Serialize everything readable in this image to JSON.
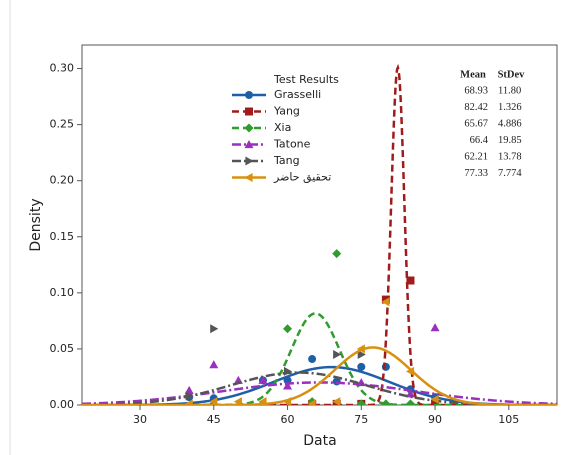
{
  "chart_data": {
    "type": "density",
    "xlabel": "Data",
    "ylabel": "Density",
    "legend_title": "Test Results",
    "mean_header": "Mean",
    "stdev_header": "StDev",
    "xlim": [
      18.2,
      114.8
    ],
    "xticks": [
      30,
      45,
      60,
      75,
      90,
      105
    ],
    "ylim": [
      0,
      0.321
    ],
    "yticks": [
      {
        "value": 0,
        "label": "0.00"
      },
      {
        "value": 0.05,
        "label": "0.05"
      },
      {
        "value": 0.1,
        "label": "0.10"
      },
      {
        "value": 0.15,
        "label": "0.15"
      },
      {
        "value": 0.2,
        "label": "0.20"
      },
      {
        "value": 0.25,
        "label": "0.25"
      },
      {
        "value": 0.3,
        "label": "0.30"
      }
    ],
    "series": [
      {
        "name": "Grasselli",
        "color": "#1f5fa8",
        "marker": "circle",
        "line_style": "solid",
        "mean": 68.93,
        "stdev": 11.8,
        "stdev_label": "11.80",
        "x": [
          40,
          45,
          55,
          60,
          65,
          70,
          75,
          80,
          85,
          90
        ],
        "y": [
          0.007,
          0.006,
          0.022,
          0.022,
          0.041,
          0.021,
          0.034,
          0.034,
          0.014,
          0.007
        ]
      },
      {
        "name": "Yang",
        "color": "#a01c1c",
        "marker": "square",
        "line_style": "dashed",
        "mean": 82.42,
        "stdev": 1.326,
        "x": [
          65,
          70,
          75,
          80,
          85,
          90
        ],
        "y": [
          0.001,
          0.001,
          0.001,
          0.094,
          0.111,
          0.001
        ]
      },
      {
        "name": "Xia",
        "color": "#2e9c2e",
        "marker": "diamond",
        "line_style": "dashed",
        "mean": 65.67,
        "stdev": 4.886,
        "x": [
          45,
          55,
          60,
          65,
          70,
          75,
          80,
          85
        ],
        "y": [
          0.001,
          0.001,
          0.068,
          0.003,
          0.135,
          0.001,
          0.001,
          0.001
        ]
      },
      {
        "name": "Tatone",
        "color": "#9b2fc0",
        "marker": "triangle-up",
        "line_style": "dashdot",
        "mean": 66.4,
        "stdev": 19.85,
        "x": [
          40,
          45,
          50,
          55,
          60,
          75,
          85,
          90
        ],
        "y": [
          0.013,
          0.036,
          0.022,
          0.022,
          0.017,
          0.02,
          0.01,
          0.069
        ]
      },
      {
        "name": "Tang",
        "color": "#555555",
        "marker": "triangle-right",
        "line_style": "dashdot",
        "mean": 62.21,
        "stdev": 13.78,
        "x": [
          40,
          45,
          60,
          70,
          75
        ],
        "y": [
          0.008,
          0.068,
          0.03,
          0.045,
          0.045
        ]
      },
      {
        "name": "تحقیق حاضر",
        "color": "#d9900f",
        "marker": "triangle-left",
        "line_style": "solid",
        "mean": 77.33,
        "stdev": 7.774,
        "x": [
          40,
          45,
          50,
          55,
          60,
          65,
          70,
          75,
          80,
          85,
          90
        ],
        "y": [
          0.001,
          0.003,
          0.003,
          0.003,
          0.003,
          0.001,
          0.003,
          0.05,
          0.092,
          0.03,
          0.005
        ]
      }
    ]
  }
}
